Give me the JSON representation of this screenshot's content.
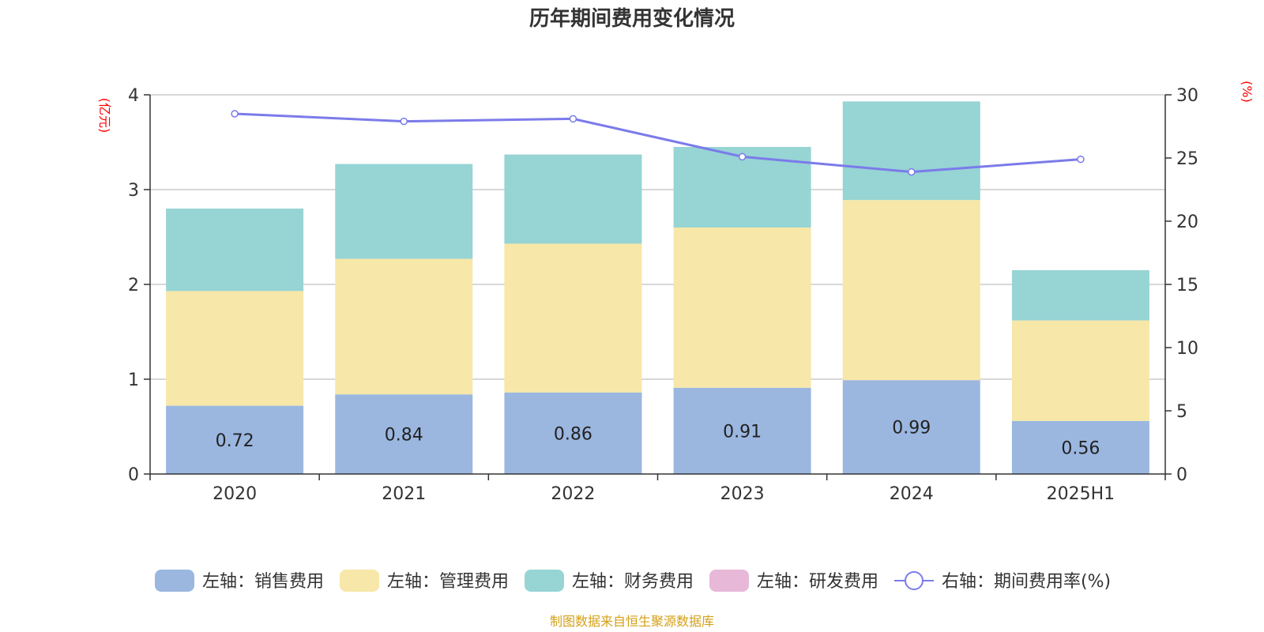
{
  "chart_data": {
    "type": "bar",
    "stacked": true,
    "title": "历年期间费用变化情况",
    "categories": [
      "2020",
      "2021",
      "2022",
      "2023",
      "2024",
      "2025H1"
    ],
    "left_axis": {
      "unit_label": "(亿元)",
      "ylim": [
        0,
        4
      ],
      "ticks": [
        "0",
        "1",
        "2",
        "3",
        "4"
      ]
    },
    "right_axis": {
      "unit_label": "(%)",
      "ylim": [
        0,
        30
      ],
      "ticks": [
        "0",
        "5",
        "10",
        "15",
        "20",
        "25",
        "30"
      ]
    },
    "series": [
      {
        "name": "左轴：销售费用",
        "type": "bar",
        "axis": "left",
        "color": "#9bb7e0",
        "values": [
          0.72,
          0.84,
          0.86,
          0.91,
          0.99,
          0.56
        ],
        "show_labels": true
      },
      {
        "name": "左轴：管理费用",
        "type": "bar",
        "axis": "left",
        "color": "#f7e7a8",
        "values": [
          1.21,
          1.43,
          1.57,
          1.69,
          1.9,
          1.06
        ]
      },
      {
        "name": "左轴：财务费用",
        "type": "bar",
        "axis": "left",
        "color": "#97d4d4",
        "values": [
          0.87,
          1.0,
          0.94,
          0.85,
          1.04,
          0.53
        ]
      },
      {
        "name": "左轴：研发费用",
        "type": "bar",
        "axis": "left",
        "color": "#e8b8d8",
        "values": [
          0,
          0,
          0,
          0,
          0,
          0
        ]
      },
      {
        "name": "右轴：期间费用率(%)",
        "type": "line",
        "axis": "right",
        "color": "#7b7bea",
        "values": [
          28.5,
          27.9,
          28.1,
          25.1,
          23.9,
          24.9
        ]
      }
    ],
    "grid": true,
    "legend_position": "bottom"
  },
  "source_note": "制图数据来自恒生聚源数据库"
}
